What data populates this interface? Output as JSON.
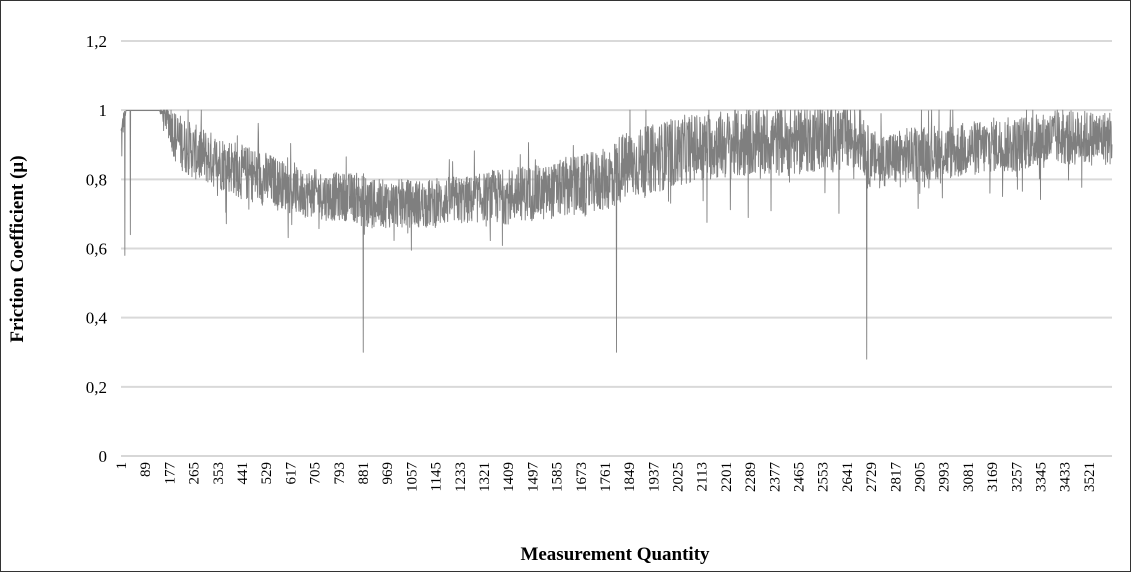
{
  "chart_data": {
    "type": "line",
    "title": "",
    "xlabel": "Measurement Quantity",
    "ylabel": "Friction Coefficient (µ)",
    "ylim": [
      0,
      1.2
    ],
    "yticks": [
      "0",
      "0,2",
      "0,4",
      "0,6",
      "0,8",
      "1",
      "1,2"
    ],
    "xlim": [
      1,
      3605
    ],
    "xtick_labels": [
      "1",
      "89",
      "177",
      "265",
      "353",
      "441",
      "529",
      "617",
      "705",
      "793",
      "881",
      "969",
      "1057",
      "1145",
      "1233",
      "1321",
      "1409",
      "1497",
      "1585",
      "1673",
      "1761",
      "1849",
      "1937",
      "2025",
      "2113",
      "2201",
      "2289",
      "2377",
      "2465",
      "2553",
      "2641",
      "2729",
      "2817",
      "2905",
      "2993",
      "3081",
      "3169",
      "3257",
      "3345",
      "3433",
      "3521"
    ],
    "grid": "horizontal",
    "legend": "none",
    "series": [
      {
        "color": "#7f7f7f",
        "x": [
          1,
          5,
          10,
          20,
          30,
          60,
          100,
          140,
          177,
          200,
          230,
          265,
          300,
          353,
          400,
          441,
          500,
          529,
          580,
          617,
          660,
          705,
          750,
          793,
          840,
          881,
          890,
          900,
          920,
          969,
          1000,
          1057,
          1100,
          1145,
          1200,
          1233,
          1280,
          1321,
          1360,
          1409,
          1450,
          1497,
          1540,
          1585,
          1630,
          1673,
          1720,
          1761,
          1790,
          1800,
          1810,
          1849,
          1900,
          1937,
          1980,
          2025,
          2070,
          2113,
          2160,
          2201,
          2250,
          2289,
          2330,
          2377,
          2420,
          2465,
          2510,
          2553,
          2600,
          2641,
          2680,
          2700,
          2710,
          2720,
          2729,
          2770,
          2817,
          2860,
          2905,
          2950,
          2993,
          3040,
          3081,
          3130,
          3169,
          3210,
          3257,
          3300,
          3345,
          3390,
          3433,
          3480,
          3521,
          3560,
          3605
        ],
        "y_mean": [
          0.92,
          0.92,
          0.97,
          0.999,
          0.999,
          0.999,
          0.999,
          0.999,
          0.97,
          0.92,
          0.9,
          0.88,
          0.87,
          0.85,
          0.84,
          0.82,
          0.81,
          0.8,
          0.79,
          0.77,
          0.76,
          0.76,
          0.75,
          0.75,
          0.75,
          0.74,
          0.72,
          0.73,
          0.73,
          0.73,
          0.73,
          0.73,
          0.73,
          0.73,
          0.74,
          0.74,
          0.74,
          0.75,
          0.75,
          0.75,
          0.76,
          0.76,
          0.76,
          0.77,
          0.78,
          0.78,
          0.79,
          0.8,
          0.81,
          0.82,
          0.83,
          0.84,
          0.85,
          0.86,
          0.87,
          0.88,
          0.89,
          0.89,
          0.9,
          0.9,
          0.9,
          0.91,
          0.91,
          0.91,
          0.91,
          0.91,
          0.92,
          0.92,
          0.92,
          0.92,
          0.92,
          0.92,
          0.88,
          0.86,
          0.86,
          0.86,
          0.86,
          0.87,
          0.87,
          0.88,
          0.88,
          0.88,
          0.89,
          0.89,
          0.9,
          0.9,
          0.9,
          0.91,
          0.91,
          0.92,
          0.92,
          0.92,
          0.92,
          0.92,
          0.92
        ],
        "spread": [
          0.08,
          0.08,
          0.03,
          0.0,
          0.0,
          0.0,
          0.0,
          0.0,
          0.06,
          0.08,
          0.08,
          0.08,
          0.08,
          0.08,
          0.08,
          0.08,
          0.08,
          0.08,
          0.07,
          0.07,
          0.07,
          0.07,
          0.07,
          0.07,
          0.07,
          0.08,
          0.1,
          0.08,
          0.07,
          0.07,
          0.07,
          0.07,
          0.07,
          0.07,
          0.07,
          0.07,
          0.07,
          0.07,
          0.08,
          0.08,
          0.08,
          0.08,
          0.08,
          0.08,
          0.09,
          0.09,
          0.09,
          0.09,
          0.1,
          0.1,
          0.1,
          0.1,
          0.1,
          0.1,
          0.1,
          0.1,
          0.1,
          0.1,
          0.1,
          0.1,
          0.1,
          0.1,
          0.1,
          0.1,
          0.1,
          0.1,
          0.1,
          0.1,
          0.1,
          0.1,
          0.1,
          0.1,
          0.1,
          0.09,
          0.08,
          0.08,
          0.08,
          0.08,
          0.08,
          0.08,
          0.08,
          0.08,
          0.08,
          0.08,
          0.08,
          0.08,
          0.08,
          0.08,
          0.08,
          0.08,
          0.08,
          0.08,
          0.08,
          0.08,
          0.08
        ],
        "dips": [
          {
            "x": 15,
            "y": 0.58
          },
          {
            "x": 35,
            "y": 0.64
          },
          {
            "x": 882,
            "y": 0.3
          },
          {
            "x": 1803,
            "y": 0.3
          },
          {
            "x": 2713,
            "y": 0.28
          }
        ],
        "y_max": 1.0
      }
    ]
  }
}
